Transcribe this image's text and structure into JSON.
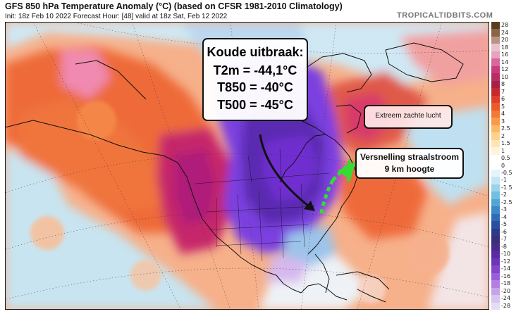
{
  "header": {
    "title": "GFS 850 hPa Temperature Anomaly (°C) (based on CFSR 1981-2010 Climatology)",
    "subtitle": "Init: 18z Feb 10 2022   Forecast Hour: [48]   valid at 18z Sat, Feb 12 2022",
    "brand": "TROPICALTIDBITS.COM"
  },
  "annotations": {
    "cold_outbreak": {
      "heading": "Koude uitbraak:",
      "t2m": "T2m = -44,1°C",
      "t850": "T850 = -40°C",
      "t500": "T500 = -45°C"
    },
    "mild_air": "Extreem zachte lucht",
    "jet": {
      "line1": "Versnelling straalstroom",
      "line2": "9 km hoogte"
    }
  },
  "colors": {
    "arrow": "#111111",
    "jet_stream": "#33dd33",
    "cold_core": "#7b3fe0",
    "warm_core": "#b02080"
  },
  "colorbar": {
    "labels": [
      "28",
      "24",
      "20",
      "18",
      "16",
      "14",
      "12",
      "10",
      "8",
      "7",
      "6",
      "5",
      "4",
      "3",
      "2.5",
      "2",
      "1.5",
      "1",
      "0.5",
      "0",
      "-0.5",
      "-1",
      "-1.5",
      "-2",
      "-2.5",
      "-3",
      "-4",
      "-5",
      "-6",
      "-7",
      "-8",
      "-10",
      "-12",
      "-14",
      "-16",
      "-18",
      "-20",
      "-24",
      "-28"
    ],
    "colors": [
      "#5a3d1f",
      "#8a6446",
      "#b89381",
      "#e8c3cf",
      "#e7a2be",
      "#d9679c",
      "#c93b7e",
      "#b82d63",
      "#a61f47",
      "#c8282a",
      "#dd3f2b",
      "#ec5a2c",
      "#f37935",
      "#f89b47",
      "#fbb966",
      "#fdd28f",
      "#fee5b5",
      "#fff3da",
      "#ffffff",
      "#ffffff",
      "#e5f4fa",
      "#c2e6f2",
      "#9cd3ea",
      "#73bfe1",
      "#52a6d5",
      "#3f88c6",
      "#2f6cb6",
      "#2a4fa0",
      "#2d3a88",
      "#3a2f79",
      "#4a2a8a",
      "#5b2aa0",
      "#6e33b8",
      "#8544cc",
      "#9c5dd9",
      "#b27fe1",
      "#c6a3e9",
      "#d8c5f0",
      "#e7dcf6"
    ]
  }
}
